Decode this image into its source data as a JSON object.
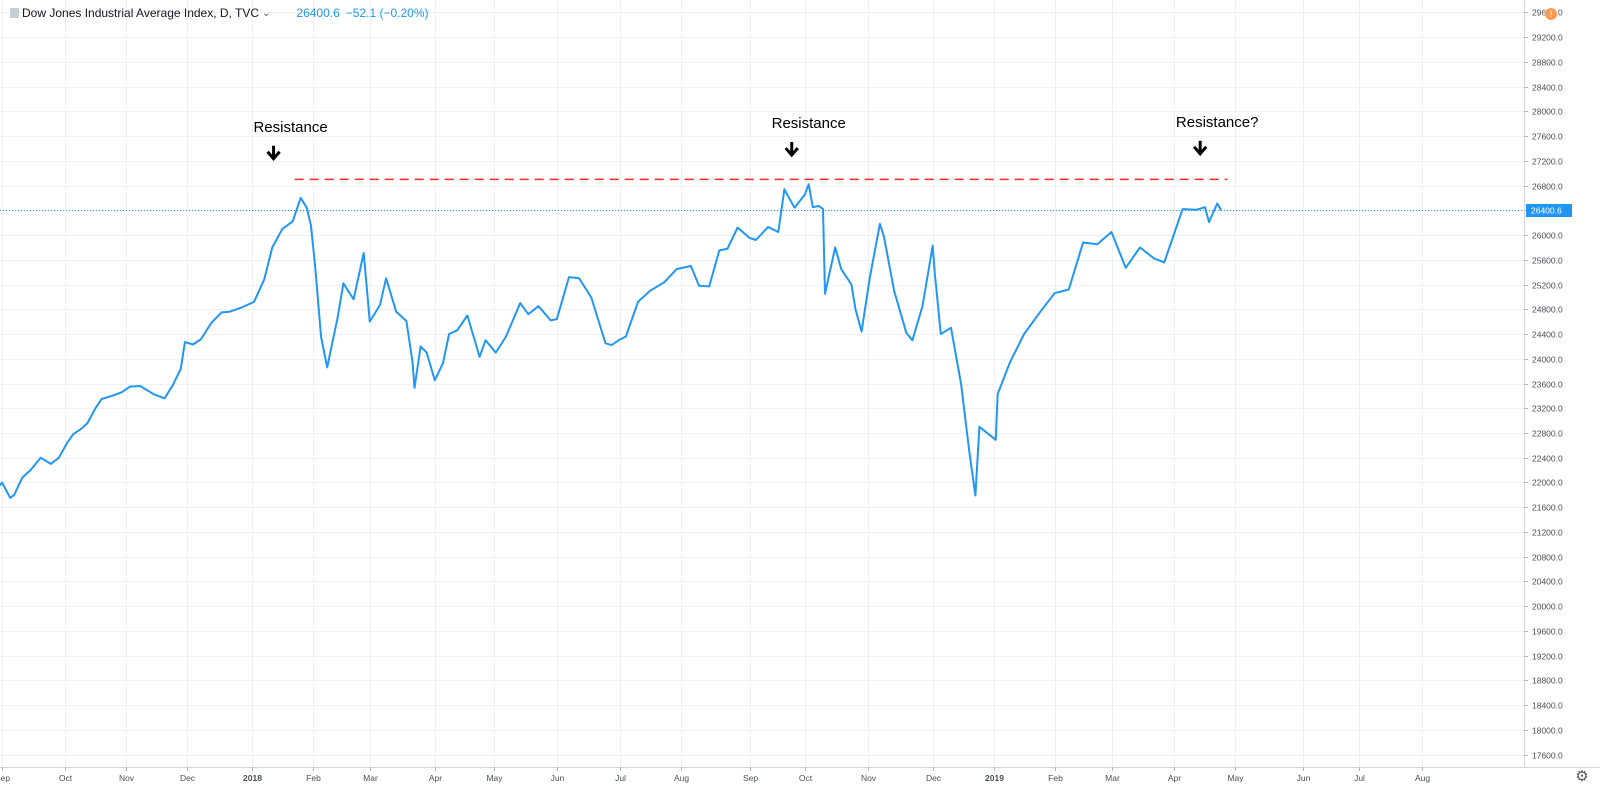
{
  "header": {
    "symbol": "Dow Jones Industrial Average Index, D, TVC",
    "price": "26400.6",
    "change": "−52.1 (−0.20%)",
    "alert": "!"
  },
  "colors": {
    "line": "#2196f3",
    "resistance": "#ff2a2a",
    "grid": "#eef1f4",
    "price_badge": "#2196f3",
    "arrow": "#000000"
  },
  "icons": {
    "settings": "gear-icon",
    "alert": "alert-icon",
    "chevron": "chevron-down-icon",
    "arrow": "arrow-down-icon"
  },
  "annotations": [
    {
      "text": "Resistance",
      "date": "2018-01-21",
      "value": 27670
    },
    {
      "text": "Resistance",
      "date": "2018-10-03",
      "value": 27730
    },
    {
      "text": "Resistance?",
      "date": "2019-04-22",
      "value": 27750
    }
  ],
  "chart_data": {
    "type": "line",
    "title": "Dow Jones Industrial Average Index, D, TVC",
    "x_type": "date",
    "xlim": [
      "2017-08-31",
      "2019-09-20"
    ],
    "ylim": [
      17400,
      29800
    ],
    "y_ticks": [
      17600,
      18000,
      18400,
      18800,
      19200,
      19600,
      20000,
      20400,
      20800,
      21200,
      21600,
      22000,
      22400,
      22800,
      23200,
      23600,
      24000,
      24400,
      24800,
      25200,
      25600,
      26000,
      26400,
      26800,
      27200,
      27600,
      28000,
      28400,
      28800,
      29200,
      29600
    ],
    "y_tick_labels": [
      "17600.0",
      "18000.0",
      "18400.0",
      "18800.0",
      "19200.0",
      "19600.0",
      "20000.0",
      "20400.0",
      "20800.0",
      "21200.0",
      "21600.0",
      "22000.0",
      "22400.0",
      "22800.0",
      "23200.0",
      "23600.0",
      "24000.0",
      "24400.0",
      "24800.0",
      "25200.0",
      "25600.0",
      "26000.0",
      "26400.0",
      "26800.0",
      "27200.0",
      "27600.0",
      "28000.0",
      "28400.0",
      "28800.0",
      "29200.0",
      "29600.0"
    ],
    "x_ticks": [
      {
        "date": "2017-09-01",
        "label": "Sep",
        "bold": false
      },
      {
        "date": "2017-10-02",
        "label": "Oct",
        "bold": false
      },
      {
        "date": "2017-11-01",
        "label": "Nov",
        "bold": false
      },
      {
        "date": "2017-12-01",
        "label": "Dec",
        "bold": false
      },
      {
        "date": "2018-01-02",
        "label": "2018",
        "bold": true
      },
      {
        "date": "2018-02-01",
        "label": "Feb",
        "bold": false
      },
      {
        "date": "2018-03-01",
        "label": "Mar",
        "bold": false
      },
      {
        "date": "2018-04-02",
        "label": "Apr",
        "bold": false
      },
      {
        "date": "2018-05-01",
        "label": "May",
        "bold": false
      },
      {
        "date": "2018-06-01",
        "label": "Jun",
        "bold": false
      },
      {
        "date": "2018-07-02",
        "label": "Jul",
        "bold": false
      },
      {
        "date": "2018-08-01",
        "label": "Aug",
        "bold": false
      },
      {
        "date": "2018-09-04",
        "label": "Sep",
        "bold": false
      },
      {
        "date": "2018-10-01",
        "label": "Oct",
        "bold": false
      },
      {
        "date": "2018-11-01",
        "label": "Nov",
        "bold": false
      },
      {
        "date": "2018-12-03",
        "label": "Dec",
        "bold": false
      },
      {
        "date": "2019-01-02",
        "label": "2019",
        "bold": true
      },
      {
        "date": "2019-02-01",
        "label": "Feb",
        "bold": false
      },
      {
        "date": "2019-03-01",
        "label": "Mar",
        "bold": false
      },
      {
        "date": "2019-04-01",
        "label": "Apr",
        "bold": false
      },
      {
        "date": "2019-05-01",
        "label": "May",
        "bold": false
      },
      {
        "date": "2019-06-03",
        "label": "Jun",
        "bold": false
      },
      {
        "date": "2019-07-01",
        "label": "Jul",
        "bold": false
      },
      {
        "date": "2019-08-01",
        "label": "Aug",
        "bold": false
      }
    ],
    "last_value_label": "26400.6",
    "last_value": 26400.6,
    "grid": true,
    "series": [
      {
        "x": [
          "2017-08-31",
          "2017-09-01",
          "2017-09-05",
          "2017-09-07",
          "2017-09-11",
          "2017-09-15",
          "2017-09-20",
          "2017-09-25",
          "2017-09-29",
          "2017-10-03",
          "2017-10-06",
          "2017-10-10",
          "2017-10-13",
          "2017-10-17",
          "2017-10-20",
          "2017-10-25",
          "2017-10-30",
          "2017-11-03",
          "2017-11-08",
          "2017-11-15",
          "2017-11-20",
          "2017-11-24",
          "2017-11-28",
          "2017-11-30",
          "2017-12-04",
          "2017-12-08",
          "2017-12-13",
          "2017-12-18",
          "2017-12-22",
          "2017-12-28",
          "2018-01-03",
          "2018-01-08",
          "2018-01-12",
          "2018-01-17",
          "2018-01-22",
          "2018-01-26",
          "2018-01-29",
          "2018-01-31",
          "2018-02-02",
          "2018-02-05",
          "2018-02-08",
          "2018-02-13",
          "2018-02-16",
          "2018-02-21",
          "2018-02-26",
          "2018-03-01",
          "2018-03-06",
          "2018-03-09",
          "2018-03-14",
          "2018-03-19",
          "2018-03-22",
          "2018-03-23",
          "2018-03-26",
          "2018-03-29",
          "2018-04-02",
          "2018-04-06",
          "2018-04-09",
          "2018-04-13",
          "2018-04-18",
          "2018-04-24",
          "2018-04-27",
          "2018-05-02",
          "2018-05-07",
          "2018-05-14",
          "2018-05-18",
          "2018-05-23",
          "2018-05-29",
          "2018-06-01",
          "2018-06-07",
          "2018-06-12",
          "2018-06-18",
          "2018-06-25",
          "2018-06-28",
          "2018-07-02",
          "2018-07-05",
          "2018-07-11",
          "2018-07-17",
          "2018-07-24",
          "2018-07-30",
          "2018-08-06",
          "2018-08-10",
          "2018-08-15",
          "2018-08-20",
          "2018-08-24",
          "2018-08-29",
          "2018-09-04",
          "2018-09-07",
          "2018-09-13",
          "2018-09-18",
          "2018-09-21",
          "2018-09-26",
          "2018-10-01",
          "2018-10-03",
          "2018-10-05",
          "2018-10-08",
          "2018-10-10",
          "2018-10-11",
          "2018-10-16",
          "2018-10-19",
          "2018-10-24",
          "2018-10-26",
          "2018-10-29",
          "2018-11-02",
          "2018-11-07",
          "2018-11-09",
          "2018-11-14",
          "2018-11-20",
          "2018-11-23",
          "2018-11-28",
          "2018-12-03",
          "2018-12-04",
          "2018-12-07",
          "2018-12-12",
          "2018-12-17",
          "2018-12-21",
          "2018-12-24",
          "2018-12-26",
          "2019-01-03",
          "2019-01-04",
          "2019-01-10",
          "2019-01-17",
          "2019-01-25",
          "2019-02-01",
          "2019-02-08",
          "2019-02-15",
          "2019-02-22",
          "2019-03-01",
          "2019-03-08",
          "2019-03-15",
          "2019-03-22",
          "2019-03-27",
          "2019-04-05",
          "2019-04-12",
          "2019-04-16",
          "2019-04-18",
          "2019-04-22",
          "2019-04-24"
        ],
        "y": [
          21950,
          22000,
          21750,
          21800,
          22080,
          22200,
          22400,
          22300,
          22400,
          22640,
          22780,
          22870,
          22960,
          23200,
          23350,
          23400,
          23460,
          23550,
          23560,
          23420,
          23360,
          23570,
          23840,
          24270,
          24230,
          24320,
          24580,
          24750,
          24760,
          24830,
          24920,
          25280,
          25800,
          26100,
          26220,
          26600,
          26440,
          26160,
          25520,
          24350,
          23860,
          24640,
          25220,
          24960,
          25710,
          24600,
          24870,
          25300,
          24760,
          24610,
          23950,
          23530,
          24200,
          24100,
          23650,
          23930,
          24400,
          24460,
          24700,
          24030,
          24300,
          24100,
          24360,
          24900,
          24720,
          24850,
          24620,
          24640,
          25320,
          25300,
          24990,
          24250,
          24220,
          24310,
          24360,
          24920,
          25100,
          25240,
          25450,
          25500,
          25180,
          25170,
          25750,
          25780,
          26120,
          25950,
          25920,
          26130,
          26050,
          26740,
          26440,
          26650,
          26820,
          26450,
          26470,
          26420,
          25050,
          25800,
          25450,
          25200,
          24800,
          24440,
          25300,
          26180,
          25980,
          25100,
          24420,
          24300,
          24850,
          25830,
          25400,
          24400,
          24500,
          23590,
          22500,
          21790,
          22900,
          22690,
          23430,
          23940,
          24400,
          24760,
          25060,
          25120,
          25880,
          25850,
          26050,
          25470,
          25800,
          25620,
          25560,
          26420,
          26410,
          26450,
          26210,
          26510,
          26400
        ]
      }
    ],
    "resistance_line": {
      "from": "2018-01-23",
      "to": "2019-04-27",
      "value": 26900,
      "style": "dashed"
    }
  }
}
